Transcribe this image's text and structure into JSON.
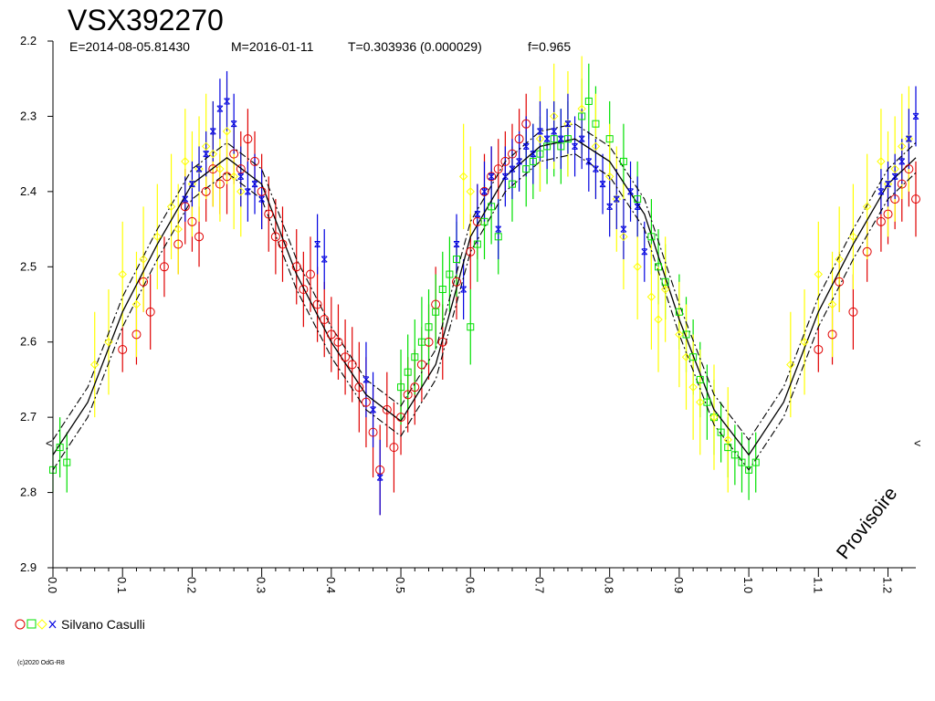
{
  "chart_data": {
    "type": "scatter",
    "title": "VSX392270",
    "subtitle": {
      "epoch": "E=2014-08-05.81430",
      "max": "M=2016-01-11",
      "period": "T=0.303936 (0.000029)",
      "f": "f=0.965"
    },
    "xlim": [
      0.0,
      1.24
    ],
    "ylim": [
      2.2,
      2.9
    ],
    "y_inverted": true,
    "x_ticks": [
      "0.0",
      "0.1",
      "0.2",
      "0.3",
      "0.4",
      "0.5",
      "0.6",
      "0.7",
      "0.8",
      "0.9",
      "1.0",
      "1.1",
      "1.2"
    ],
    "y_ticks": [
      "2.2",
      "2.3",
      "2.4",
      "2.5",
      "2.6",
      "2.7",
      "2.8",
      "2.9"
    ],
    "legend_observer": "Silvano Casulli",
    "legend_placement": "bottom-left",
    "stamp": "Provisoire",
    "right_marker": "<",
    "left_marker": "<",
    "copyright": "(c)2020 OdG-R8",
    "colors": {
      "red": "#e00000",
      "green": "#00e000",
      "yellow": "#ffff00",
      "blue": "#0000e0",
      "curve": "#000000"
    },
    "fit_curve": {
      "phase": [
        0.0,
        0.05,
        0.1,
        0.15,
        0.2,
        0.25,
        0.3,
        0.35,
        0.4,
        0.45,
        0.5,
        0.55,
        0.6,
        0.65,
        0.7,
        0.75,
        0.8,
        0.85,
        0.9,
        0.95,
        1.0,
        1.05,
        1.1,
        1.15,
        1.2,
        1.24
      ],
      "mag": [
        2.75,
        2.68,
        2.56,
        2.47,
        2.39,
        2.355,
        2.39,
        2.51,
        2.6,
        2.67,
        2.705,
        2.63,
        2.46,
        2.38,
        2.34,
        2.33,
        2.36,
        2.43,
        2.57,
        2.69,
        2.75,
        2.68,
        2.56,
        2.47,
        2.39,
        2.355
      ],
      "band": 0.02
    },
    "series": [
      {
        "name": "",
        "color_key": "red",
        "marker": "circle",
        "points": [
          [
            0.1,
            2.61,
            0.03
          ],
          [
            0.12,
            2.59,
            0.04
          ],
          [
            0.13,
            2.52,
            0.04
          ],
          [
            0.14,
            2.56,
            0.05
          ],
          [
            0.16,
            2.5,
            0.04
          ],
          [
            0.18,
            2.47,
            0.04
          ],
          [
            0.19,
            2.42,
            0.05
          ],
          [
            0.2,
            2.44,
            0.04
          ],
          [
            0.21,
            2.46,
            0.04
          ],
          [
            0.22,
            2.4,
            0.04
          ],
          [
            0.23,
            2.37,
            0.05
          ],
          [
            0.24,
            2.39,
            0.04
          ],
          [
            0.25,
            2.38,
            0.05
          ],
          [
            0.26,
            2.35,
            0.04
          ],
          [
            0.27,
            2.37,
            0.05
          ],
          [
            0.28,
            2.33,
            0.04
          ],
          [
            0.29,
            2.36,
            0.04
          ],
          [
            0.3,
            2.4,
            0.05
          ],
          [
            0.31,
            2.43,
            0.05
          ],
          [
            0.32,
            2.46,
            0.05
          ],
          [
            0.33,
            2.47,
            0.05
          ],
          [
            0.35,
            2.5,
            0.05
          ],
          [
            0.36,
            2.53,
            0.05
          ],
          [
            0.37,
            2.51,
            0.05
          ],
          [
            0.38,
            2.55,
            0.05
          ],
          [
            0.39,
            2.57,
            0.05
          ],
          [
            0.4,
            2.59,
            0.05
          ],
          [
            0.41,
            2.6,
            0.05
          ],
          [
            0.42,
            2.62,
            0.05
          ],
          [
            0.43,
            2.63,
            0.05
          ],
          [
            0.44,
            2.66,
            0.06
          ],
          [
            0.45,
            2.68,
            0.06
          ],
          [
            0.46,
            2.72,
            0.06
          ],
          [
            0.47,
            2.77,
            0.06
          ],
          [
            0.48,
            2.69,
            0.05
          ],
          [
            0.49,
            2.74,
            0.06
          ],
          [
            0.5,
            2.7,
            0.05
          ],
          [
            0.51,
            2.67,
            0.05
          ],
          [
            0.52,
            2.66,
            0.05
          ],
          [
            0.53,
            2.63,
            0.05
          ],
          [
            0.54,
            2.6,
            0.05
          ],
          [
            0.55,
            2.55,
            0.05
          ],
          [
            0.56,
            2.6,
            0.05
          ],
          [
            0.58,
            2.52,
            0.05
          ],
          [
            0.6,
            2.48,
            0.05
          ],
          [
            0.61,
            2.44,
            0.05
          ],
          [
            0.62,
            2.4,
            0.05
          ],
          [
            0.63,
            2.38,
            0.04
          ],
          [
            0.64,
            2.37,
            0.04
          ],
          [
            0.65,
            2.36,
            0.04
          ],
          [
            0.66,
            2.35,
            0.04
          ],
          [
            0.67,
            2.33,
            0.04
          ],
          [
            0.68,
            2.31,
            0.04
          ],
          [
            1.1,
            2.61,
            0.03
          ],
          [
            1.12,
            2.59,
            0.04
          ],
          [
            1.13,
            2.52,
            0.04
          ],
          [
            1.15,
            2.56,
            0.05
          ],
          [
            1.17,
            2.48,
            0.04
          ],
          [
            1.19,
            2.44,
            0.04
          ],
          [
            1.2,
            2.43,
            0.04
          ],
          [
            1.21,
            2.41,
            0.04
          ],
          [
            1.22,
            2.39,
            0.05
          ],
          [
            1.23,
            2.37,
            0.05
          ],
          [
            1.24,
            2.41,
            0.05
          ]
        ]
      },
      {
        "name": "",
        "color_key": "green",
        "marker": "square",
        "points": [
          [
            0.0,
            2.77,
            0.03
          ],
          [
            0.01,
            2.74,
            0.04
          ],
          [
            0.02,
            2.76,
            0.04
          ],
          [
            0.5,
            2.66,
            0.05
          ],
          [
            0.51,
            2.64,
            0.05
          ],
          [
            0.52,
            2.62,
            0.05
          ],
          [
            0.53,
            2.6,
            0.06
          ],
          [
            0.54,
            2.58,
            0.05
          ],
          [
            0.55,
            2.56,
            0.05
          ],
          [
            0.56,
            2.53,
            0.05
          ],
          [
            0.57,
            2.51,
            0.05
          ],
          [
            0.58,
            2.49,
            0.05
          ],
          [
            0.6,
            2.58,
            0.05
          ],
          [
            0.61,
            2.47,
            0.05
          ],
          [
            0.62,
            2.44,
            0.05
          ],
          [
            0.63,
            2.42,
            0.05
          ],
          [
            0.64,
            2.46,
            0.05
          ],
          [
            0.66,
            2.39,
            0.05
          ],
          [
            0.68,
            2.37,
            0.05
          ],
          [
            0.69,
            2.36,
            0.05
          ],
          [
            0.7,
            2.35,
            0.05
          ],
          [
            0.71,
            2.34,
            0.05
          ],
          [
            0.72,
            2.33,
            0.05
          ],
          [
            0.73,
            2.34,
            0.05
          ],
          [
            0.74,
            2.33,
            0.05
          ],
          [
            0.76,
            2.3,
            0.05
          ],
          [
            0.77,
            2.28,
            0.05
          ],
          [
            0.78,
            2.31,
            0.05
          ],
          [
            0.8,
            2.33,
            0.05
          ],
          [
            0.82,
            2.36,
            0.05
          ],
          [
            0.84,
            2.41,
            0.05
          ],
          [
            0.86,
            2.46,
            0.05
          ],
          [
            0.87,
            2.5,
            0.05
          ],
          [
            0.88,
            2.52,
            0.05
          ],
          [
            0.9,
            2.56,
            0.05
          ],
          [
            0.91,
            2.59,
            0.05
          ],
          [
            0.92,
            2.62,
            0.05
          ],
          [
            0.93,
            2.65,
            0.05
          ],
          [
            0.94,
            2.68,
            0.05
          ],
          [
            0.95,
            2.7,
            0.05
          ],
          [
            0.96,
            2.72,
            0.04
          ],
          [
            0.97,
            2.74,
            0.04
          ],
          [
            0.98,
            2.75,
            0.04
          ],
          [
            0.99,
            2.76,
            0.04
          ],
          [
            1.0,
            2.77,
            0.04
          ],
          [
            1.01,
            2.76,
            0.04
          ]
        ]
      },
      {
        "name": "",
        "color_key": "yellow",
        "marker": "diamond",
        "points": [
          [
            0.06,
            2.63,
            0.07
          ],
          [
            0.08,
            2.6,
            0.07
          ],
          [
            0.1,
            2.51,
            0.07
          ],
          [
            0.12,
            2.55,
            0.07
          ],
          [
            0.13,
            2.49,
            0.07
          ],
          [
            0.15,
            2.46,
            0.07
          ],
          [
            0.17,
            2.42,
            0.07
          ],
          [
            0.18,
            2.45,
            0.06
          ],
          [
            0.19,
            2.36,
            0.07
          ],
          [
            0.2,
            2.39,
            0.07
          ],
          [
            0.21,
            2.37,
            0.07
          ],
          [
            0.22,
            2.34,
            0.07
          ],
          [
            0.23,
            2.35,
            0.07
          ],
          [
            0.24,
            2.37,
            0.07
          ],
          [
            0.25,
            2.32,
            0.07
          ],
          [
            0.26,
            2.38,
            0.07
          ],
          [
            0.27,
            2.4,
            0.06
          ],
          [
            0.59,
            2.38,
            0.07
          ],
          [
            0.6,
            2.4,
            0.06
          ],
          [
            0.7,
            2.33,
            0.07
          ],
          [
            0.72,
            2.3,
            0.07
          ],
          [
            0.74,
            2.31,
            0.07
          ],
          [
            0.76,
            2.29,
            0.07
          ],
          [
            0.78,
            2.34,
            0.07
          ],
          [
            0.8,
            2.38,
            0.07
          ],
          [
            0.81,
            2.41,
            0.07
          ],
          [
            0.82,
            2.46,
            0.07
          ],
          [
            0.84,
            2.5,
            0.07
          ],
          [
            0.86,
            2.54,
            0.07
          ],
          [
            0.87,
            2.57,
            0.07
          ],
          [
            0.88,
            2.53,
            0.07
          ],
          [
            0.9,
            2.59,
            0.07
          ],
          [
            0.91,
            2.62,
            0.07
          ],
          [
            0.92,
            2.66,
            0.07
          ],
          [
            0.93,
            2.68,
            0.07
          ],
          [
            0.95,
            2.7,
            0.07
          ],
          [
            0.97,
            2.73,
            0.07
          ],
          [
            1.06,
            2.63,
            0.07
          ],
          [
            1.08,
            2.6,
            0.07
          ],
          [
            1.1,
            2.51,
            0.07
          ],
          [
            1.12,
            2.55,
            0.07
          ],
          [
            1.13,
            2.49,
            0.07
          ],
          [
            1.15,
            2.46,
            0.07
          ],
          [
            1.17,
            2.42,
            0.07
          ],
          [
            1.19,
            2.36,
            0.07
          ],
          [
            1.2,
            2.39,
            0.07
          ],
          [
            1.21,
            2.37,
            0.07
          ],
          [
            1.22,
            2.34,
            0.07
          ],
          [
            1.23,
            2.33,
            0.07
          ]
        ]
      },
      {
        "name": "",
        "color_key": "blue",
        "marker": "cross",
        "points": [
          [
            0.19,
            2.41,
            0.03
          ],
          [
            0.2,
            2.39,
            0.03
          ],
          [
            0.21,
            2.37,
            0.03
          ],
          [
            0.22,
            2.35,
            0.03
          ],
          [
            0.23,
            2.32,
            0.04
          ],
          [
            0.24,
            2.29,
            0.04
          ],
          [
            0.25,
            2.28,
            0.04
          ],
          [
            0.26,
            2.31,
            0.04
          ],
          [
            0.27,
            2.38,
            0.04
          ],
          [
            0.28,
            2.4,
            0.04
          ],
          [
            0.29,
            2.39,
            0.04
          ],
          [
            0.3,
            2.41,
            0.04
          ],
          [
            0.38,
            2.47,
            0.04
          ],
          [
            0.39,
            2.49,
            0.04
          ],
          [
            0.45,
            2.65,
            0.05
          ],
          [
            0.46,
            2.69,
            0.05
          ],
          [
            0.47,
            2.78,
            0.05
          ],
          [
            0.58,
            2.47,
            0.04
          ],
          [
            0.59,
            2.53,
            0.04
          ],
          [
            0.61,
            2.43,
            0.04
          ],
          [
            0.62,
            2.4,
            0.04
          ],
          [
            0.63,
            2.38,
            0.04
          ],
          [
            0.64,
            2.45,
            0.04
          ],
          [
            0.65,
            2.38,
            0.04
          ],
          [
            0.66,
            2.37,
            0.04
          ],
          [
            0.67,
            2.36,
            0.04
          ],
          [
            0.68,
            2.34,
            0.04
          ],
          [
            0.69,
            2.35,
            0.04
          ],
          [
            0.7,
            2.32,
            0.04
          ],
          [
            0.71,
            2.33,
            0.04
          ],
          [
            0.72,
            2.32,
            0.04
          ],
          [
            0.73,
            2.33,
            0.04
          ],
          [
            0.74,
            2.31,
            0.04
          ],
          [
            0.75,
            2.34,
            0.04
          ],
          [
            0.76,
            2.33,
            0.04
          ],
          [
            0.77,
            2.36,
            0.04
          ],
          [
            0.78,
            2.37,
            0.04
          ],
          [
            0.79,
            2.39,
            0.04
          ],
          [
            0.8,
            2.42,
            0.04
          ],
          [
            0.81,
            2.41,
            0.04
          ],
          [
            0.82,
            2.45,
            0.04
          ],
          [
            0.83,
            2.4,
            0.04
          ],
          [
            0.84,
            2.42,
            0.04
          ],
          [
            0.85,
            2.48,
            0.04
          ],
          [
            1.19,
            2.4,
            0.03
          ],
          [
            1.2,
            2.39,
            0.03
          ],
          [
            1.21,
            2.38,
            0.03
          ],
          [
            1.22,
            2.36,
            0.03
          ],
          [
            1.23,
            2.33,
            0.04
          ],
          [
            1.24,
            2.3,
            0.04
          ]
        ]
      }
    ]
  }
}
